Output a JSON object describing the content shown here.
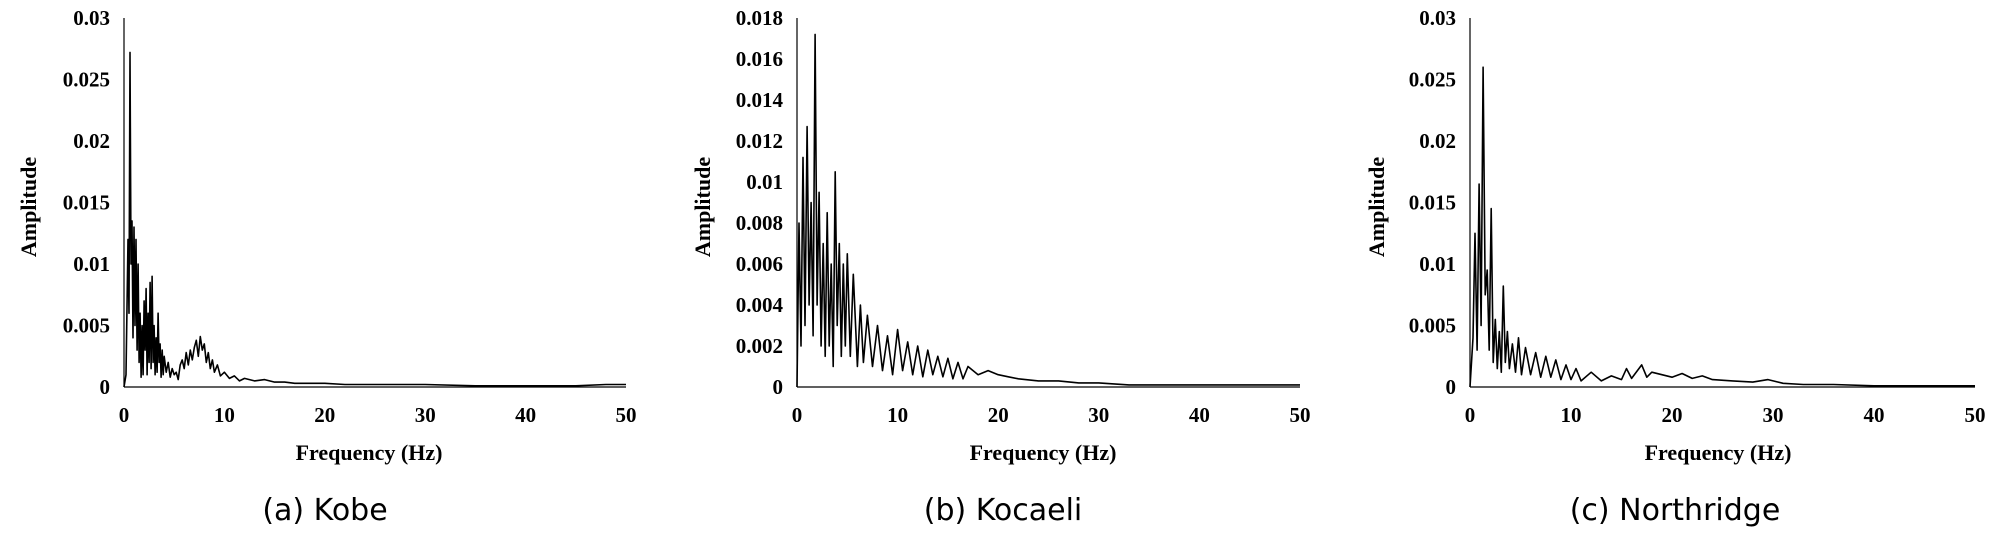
{
  "chart_data": [
    {
      "type": "line",
      "caption": "(a)  Kobe",
      "xlabel": "Frequency (Hz)",
      "ylabel": "Amplitude",
      "xlim": [
        0,
        50
      ],
      "ylim": [
        0,
        0.03
      ],
      "xticks": [
        "0",
        "10",
        "20",
        "30",
        "40",
        "50"
      ],
      "yticks": [
        "0",
        "0.005",
        "0.01",
        "0.015",
        "0.02",
        "0.025",
        "0.03"
      ],
      "grid": false,
      "series": [
        {
          "name": "Kobe",
          "x": [
            0,
            0.2,
            0.4,
            0.5,
            0.6,
            0.7,
            0.8,
            0.9,
            1.0,
            1.1,
            1.2,
            1.3,
            1.4,
            1.5,
            1.6,
            1.7,
            1.8,
            1.9,
            2.0,
            2.1,
            2.2,
            2.3,
            2.4,
            2.5,
            2.6,
            2.7,
            2.8,
            2.9,
            3.0,
            3.1,
            3.2,
            3.3,
            3.4,
            3.5,
            3.6,
            3.7,
            3.8,
            3.9,
            4.0,
            4.2,
            4.4,
            4.6,
            4.8,
            5.0,
            5.2,
            5.4,
            5.6,
            5.8,
            6.0,
            6.2,
            6.4,
            6.6,
            6.8,
            7.0,
            7.2,
            7.4,
            7.6,
            7.8,
            8.0,
            8.2,
            8.4,
            8.6,
            8.8,
            9.0,
            9.3,
            9.6,
            10.0,
            10.5,
            11.0,
            11.5,
            12.0,
            13.0,
            14.0,
            15.0,
            16.0,
            17.0,
            18.0,
            20.0,
            22.0,
            25.0,
            30.0,
            35.0,
            40.0,
            45.0,
            48.0,
            50.0
          ],
          "values": [
            0,
            0.001,
            0.012,
            0.006,
            0.0272,
            0.01,
            0.0135,
            0.004,
            0.013,
            0.005,
            0.012,
            0.003,
            0.01,
            0.002,
            0.006,
            0.0008,
            0.005,
            0.001,
            0.007,
            0.003,
            0.008,
            0.001,
            0.006,
            0.002,
            0.0085,
            0.0015,
            0.009,
            0.002,
            0.005,
            0.001,
            0.004,
            0.0012,
            0.006,
            0.002,
            0.0035,
            0.0008,
            0.003,
            0.001,
            0.0025,
            0.0012,
            0.002,
            0.0008,
            0.0015,
            0.001,
            0.0012,
            0.0006,
            0.0018,
            0.0022,
            0.0015,
            0.0028,
            0.0018,
            0.003,
            0.0022,
            0.0032,
            0.0038,
            0.0025,
            0.0041,
            0.003,
            0.0035,
            0.002,
            0.0028,
            0.0015,
            0.0022,
            0.0012,
            0.0018,
            0.0009,
            0.0012,
            0.0007,
            0.0009,
            0.0005,
            0.0007,
            0.0005,
            0.0006,
            0.0004,
            0.0004,
            0.0003,
            0.0003,
            0.0003,
            0.0002,
            0.0002,
            0.0002,
            0.0001,
            0.0001,
            0.0001,
            0.0002,
            0.0002
          ]
        }
      ]
    },
    {
      "type": "line",
      "caption": "(b)  Kocaeli",
      "xlabel": "Frequency (Hz)",
      "ylabel": "Amplitude",
      "xlim": [
        0,
        50
      ],
      "ylim": [
        0,
        0.018
      ],
      "xticks": [
        "0",
        "10",
        "20",
        "30",
        "40",
        "50"
      ],
      "yticks": [
        "0",
        "0.002",
        "0.004",
        "0.006",
        "0.008",
        "0.01",
        "0.012",
        "0.014",
        "0.016",
        "0.018"
      ],
      "grid": false,
      "series": [
        {
          "name": "Kocaeli",
          "x": [
            0,
            0.2,
            0.4,
            0.6,
            0.8,
            1.0,
            1.2,
            1.4,
            1.6,
            1.8,
            2.0,
            2.2,
            2.4,
            2.6,
            2.8,
            3.0,
            3.2,
            3.4,
            3.6,
            3.8,
            4.0,
            4.2,
            4.4,
            4.6,
            4.8,
            5.0,
            5.3,
            5.6,
            6.0,
            6.3,
            6.6,
            7.0,
            7.5,
            8.0,
            8.5,
            9.0,
            9.5,
            10.0,
            10.5,
            11.0,
            11.5,
            12.0,
            12.5,
            13.0,
            13.5,
            14.0,
            14.5,
            15.0,
            15.5,
            16.0,
            16.5,
            17.0,
            18.0,
            19.0,
            20.0,
            21.0,
            22.0,
            24.0,
            26.0,
            28.0,
            30.0,
            33.0,
            36.0,
            40.0,
            45.0,
            50.0
          ],
          "values": [
            0,
            0.008,
            0.002,
            0.0112,
            0.003,
            0.0127,
            0.004,
            0.009,
            0.0025,
            0.0172,
            0.004,
            0.0095,
            0.002,
            0.007,
            0.0015,
            0.0085,
            0.002,
            0.006,
            0.001,
            0.0105,
            0.003,
            0.007,
            0.0015,
            0.006,
            0.002,
            0.0065,
            0.0015,
            0.0055,
            0.001,
            0.004,
            0.0012,
            0.0035,
            0.001,
            0.003,
            0.0008,
            0.0025,
            0.0006,
            0.0028,
            0.0008,
            0.0022,
            0.0006,
            0.002,
            0.0005,
            0.0018,
            0.0006,
            0.0015,
            0.0005,
            0.0014,
            0.0004,
            0.0012,
            0.0004,
            0.001,
            0.0006,
            0.0008,
            0.0006,
            0.0005,
            0.0004,
            0.0003,
            0.0003,
            0.0002,
            0.0002,
            0.0001,
            0.0001,
            0.0001,
            0.0001,
            0.0001
          ]
        }
      ]
    },
    {
      "type": "line",
      "caption": "(c)  Northridge",
      "xlabel": "Frequency (Hz)",
      "ylabel": "Amplitude",
      "xlim": [
        0,
        50
      ],
      "ylim": [
        0,
        0.03
      ],
      "xticks": [
        "0",
        "10",
        "20",
        "30",
        "40",
        "50"
      ],
      "yticks": [
        "0",
        "0.005",
        "0.01",
        "0.015",
        "0.02",
        "0.025",
        "0.03"
      ],
      "grid": false,
      "series": [
        {
          "name": "Northridge",
          "x": [
            0,
            0.3,
            0.5,
            0.7,
            0.9,
            1.1,
            1.3,
            1.5,
            1.7,
            1.9,
            2.1,
            2.3,
            2.5,
            2.7,
            2.9,
            3.1,
            3.3,
            3.5,
            3.7,
            3.9,
            4.2,
            4.5,
            4.8,
            5.1,
            5.5,
            6.0,
            6.5,
            7.0,
            7.5,
            8.0,
            8.5,
            9.0,
            9.5,
            10.0,
            10.5,
            11.0,
            12.0,
            13.0,
            14.0,
            15.0,
            15.5,
            16.0,
            17.0,
            17.5,
            18.0,
            19.0,
            20.0,
            21.0,
            22.0,
            23.0,
            24.0,
            26.0,
            28.0,
            29.5,
            31.0,
            33.0,
            36.0,
            40.0,
            45.0,
            50.0
          ],
          "values": [
            0,
            0.004,
            0.0125,
            0.003,
            0.0165,
            0.005,
            0.026,
            0.0075,
            0.0095,
            0.003,
            0.0145,
            0.002,
            0.0055,
            0.0015,
            0.0045,
            0.0012,
            0.0082,
            0.002,
            0.0045,
            0.0015,
            0.0035,
            0.0012,
            0.004,
            0.001,
            0.0032,
            0.001,
            0.0028,
            0.0008,
            0.0025,
            0.0008,
            0.0022,
            0.0006,
            0.0018,
            0.0006,
            0.0015,
            0.0005,
            0.0012,
            0.0005,
            0.0009,
            0.0006,
            0.0015,
            0.0007,
            0.0018,
            0.0008,
            0.0012,
            0.001,
            0.0008,
            0.0011,
            0.0007,
            0.0009,
            0.0006,
            0.0005,
            0.0004,
            0.0006,
            0.0003,
            0.0002,
            0.0002,
            0.0001,
            0.0001,
            0.0001
          ]
        }
      ]
    }
  ]
}
